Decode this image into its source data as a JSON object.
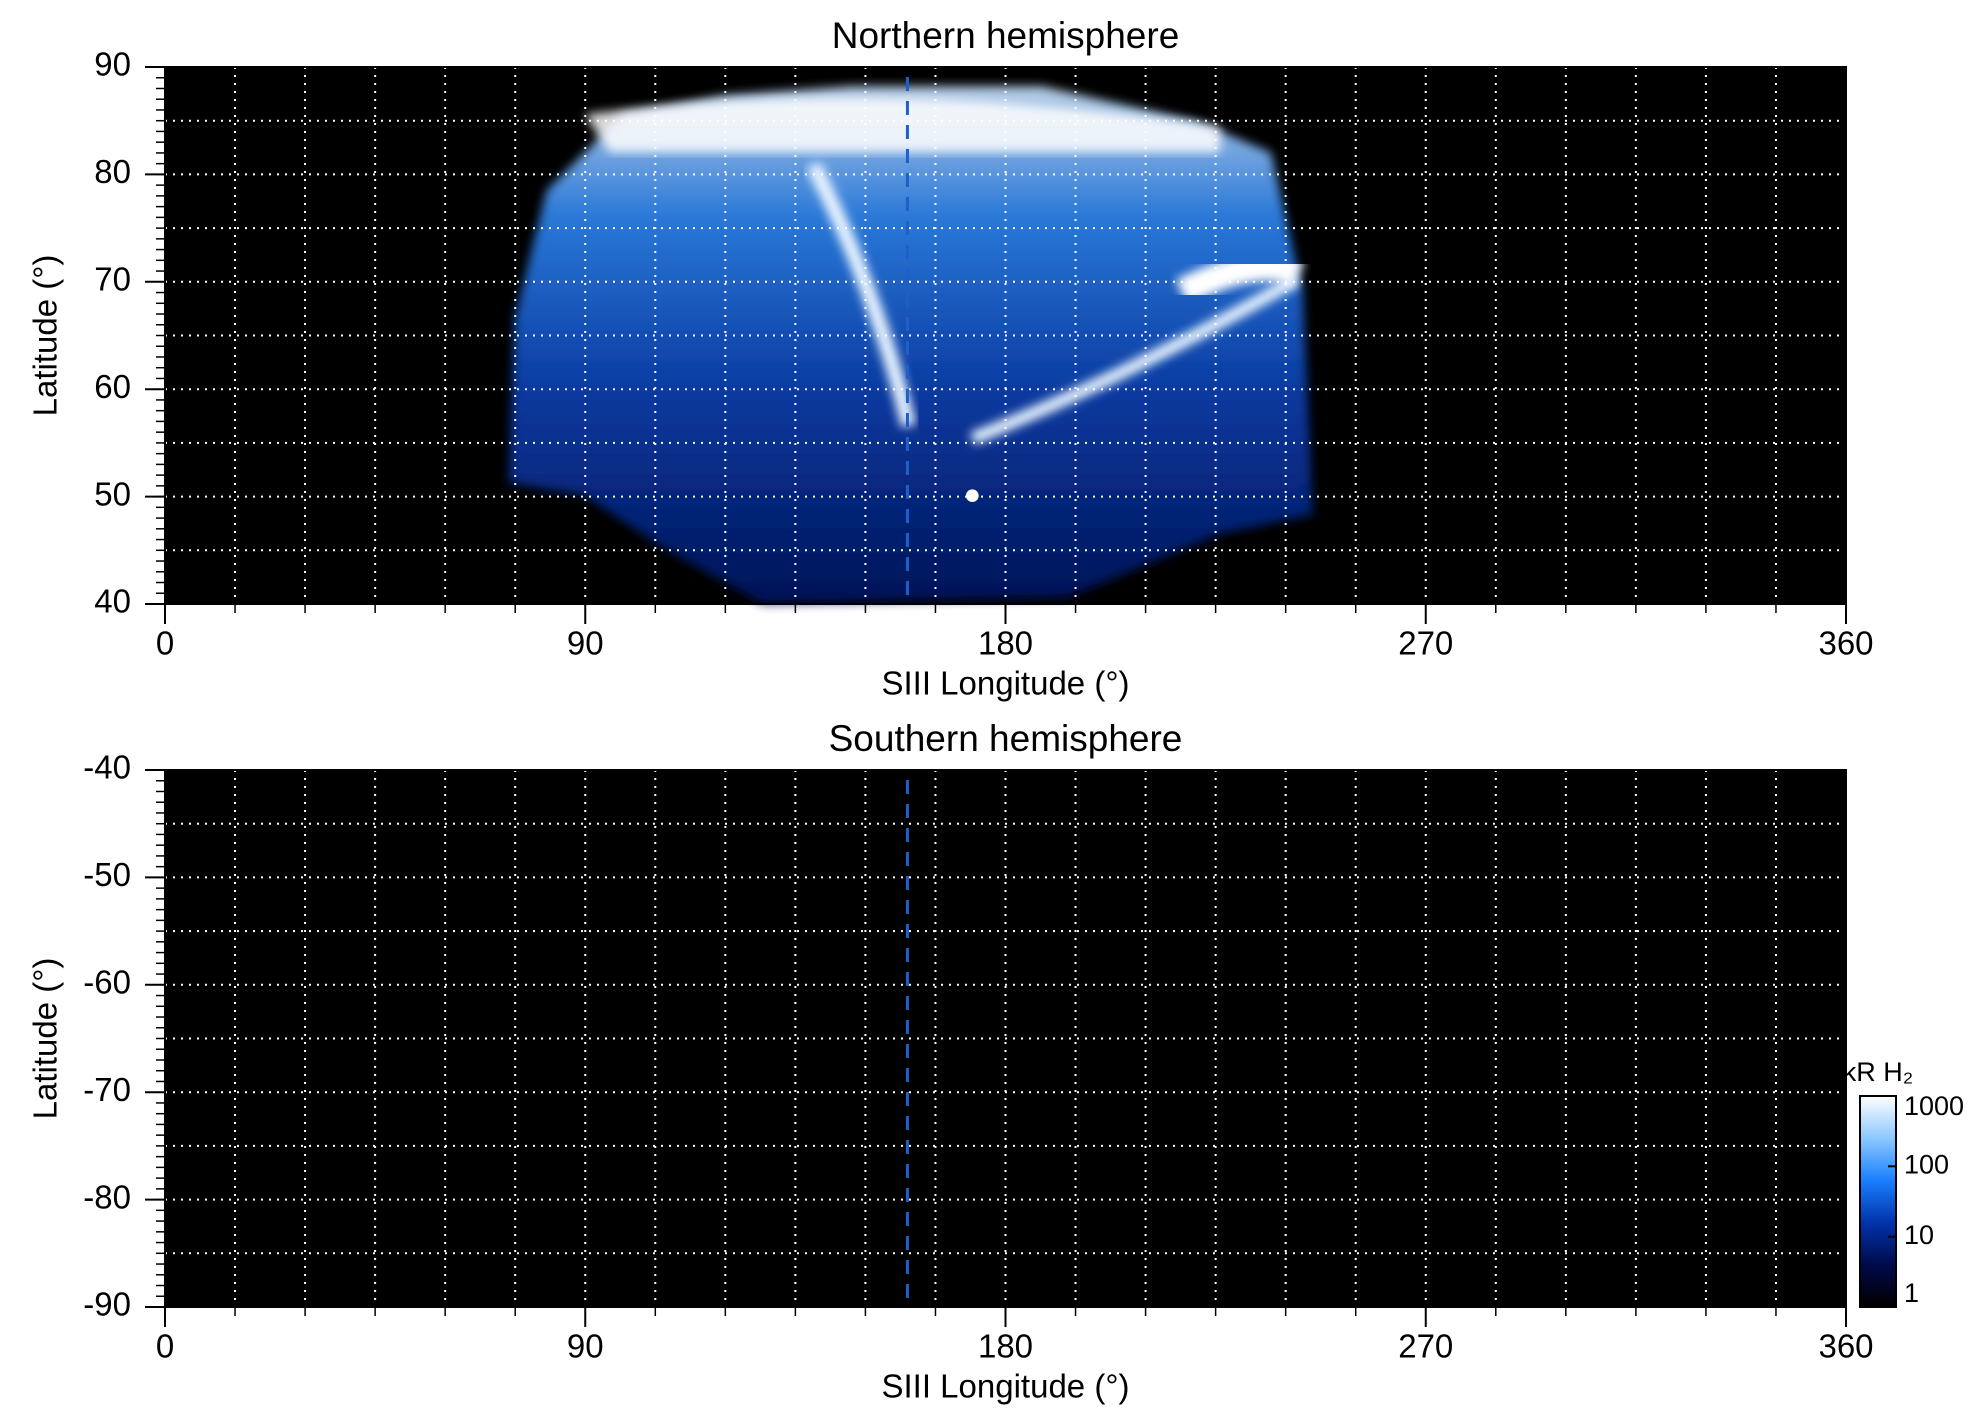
{
  "chart_data": [
    {
      "type": "heatmap",
      "title": "Northern hemisphere",
      "x_label": "SIII Longitude (°)",
      "y_label": "Latitude (°)",
      "xlim": [
        0,
        360
      ],
      "xticks": [
        0,
        90,
        180,
        270,
        360
      ],
      "ylim": [
        40,
        90
      ],
      "yticks": [
        40,
        50,
        60,
        70,
        80,
        90
      ],
      "grid": {
        "x_step": 15,
        "y_step": 5
      },
      "y_minor_step": 1,
      "reference_longitude": 159,
      "reference_color": "#1f5fcc"
    },
    {
      "type": "heatmap",
      "title": "Southern hemisphere",
      "x_label": "SIII Longitude (°)",
      "y_label": "Latitude (°)",
      "xlim": [
        0,
        360
      ],
      "xticks": [
        0,
        90,
        180,
        270,
        360
      ],
      "ylim": [
        -90,
        -40
      ],
      "yticks": [
        -90,
        -80,
        -70,
        -60,
        -50,
        -40
      ],
      "grid": {
        "x_step": 15,
        "y_step": 5
      },
      "y_minor_step": 1,
      "reference_longitude": 159,
      "reference_color": "#1f5fcc",
      "colorbar": {
        "label": "kR H₂",
        "log": true,
        "lim": [
          1,
          1000
        ],
        "ticks": [
          1,
          10,
          100,
          1000
        ],
        "colors": [
          "#000000",
          "#000a4a",
          "#0033aa",
          "#1a7fff",
          "#8cc8ff",
          "#ffffff"
        ]
      }
    }
  ]
}
